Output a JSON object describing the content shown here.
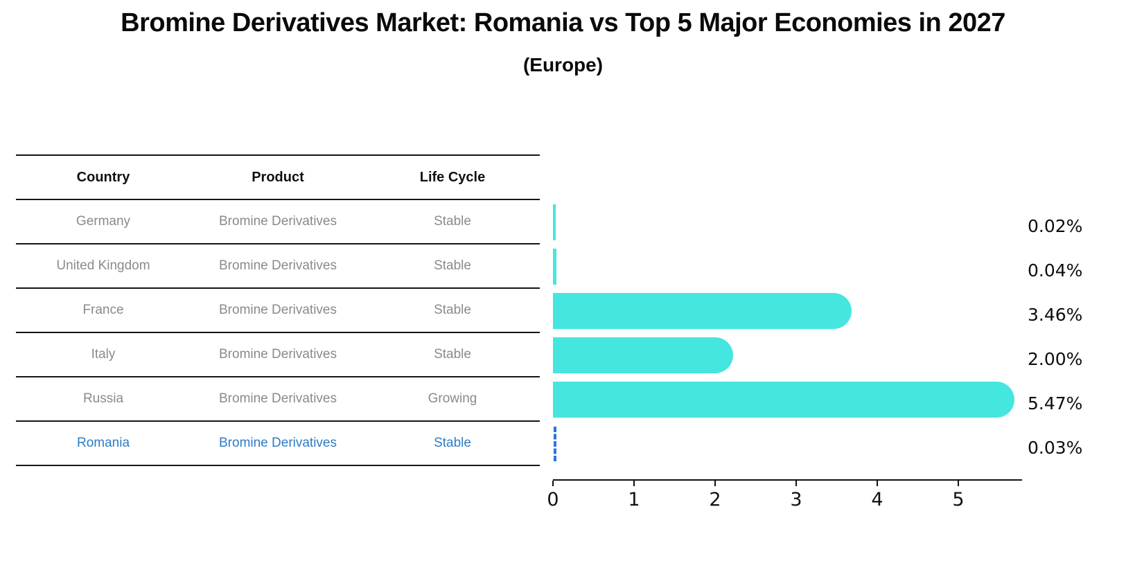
{
  "title": "Bromine Derivatives Market: Romania vs Top 5 Major Economies in 2027",
  "subtitle": "(Europe)",
  "table": {
    "headers": [
      "Country",
      "Product",
      "Life Cycle"
    ],
    "rows": [
      {
        "country": "Germany",
        "product": "Bromine Derivatives",
        "life_cycle": "Stable",
        "share": "0.02%",
        "highlight": false
      },
      {
        "country": "United Kingdom",
        "product": "Bromine Derivatives",
        "life_cycle": "Stable",
        "share": "0.04%",
        "highlight": false
      },
      {
        "country": "France",
        "product": "Bromine Derivatives",
        "life_cycle": "Stable",
        "share": "3.46%",
        "highlight": false
      },
      {
        "country": "Italy",
        "product": "Bromine Derivatives",
        "life_cycle": "Stable",
        "share": "2.00%",
        "highlight": false
      },
      {
        "country": "Russia",
        "product": "Bromine Derivatives",
        "life_cycle": "Growing",
        "share": "5.47%",
        "highlight": false
      },
      {
        "country": "Romania",
        "product": "Bromine Derivatives",
        "life_cycle": "Stable",
        "share": "0.03%",
        "highlight": true
      }
    ]
  },
  "chart_data": {
    "type": "bar",
    "orientation": "horizontal",
    "title": "Bromine Derivatives Market: Romania vs Top 5 Major Economies in 2027 (Europe)",
    "xlabel": "",
    "ylabel": "",
    "categories": [
      "Germany",
      "United Kingdom",
      "France",
      "Italy",
      "Russia",
      "Romania"
    ],
    "values": [
      0.02,
      0.04,
      3.46,
      2.0,
      5.47,
      0.03
    ],
    "labels": [
      "0.02%",
      "0.04%",
      "3.46%",
      "2.00%",
      "5.47%",
      "0.03%"
    ],
    "xlim": [
      0,
      5.77
    ],
    "xticks": [
      0,
      1,
      2,
      3,
      4,
      5
    ],
    "grid": false,
    "legend": false,
    "highlight_index": 5,
    "highlight_style": "dashed-vertical-line"
  },
  "colors": {
    "bar": "#46e6e0",
    "highlight_text": "#2b7cc7",
    "marker": "#2e72e0",
    "muted_text": "#8a8a8a",
    "axis": "#111111"
  }
}
